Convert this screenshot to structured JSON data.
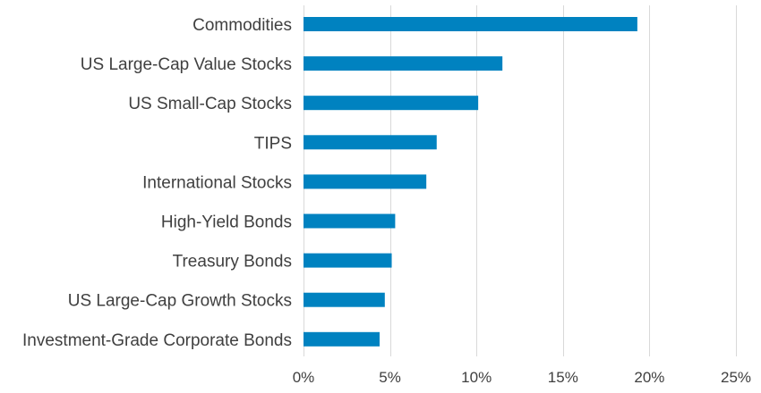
{
  "chart_data": {
    "type": "bar",
    "orientation": "horizontal",
    "title": "",
    "xlabel": "",
    "ylabel": "",
    "categories": [
      "Commodities",
      "US Large-Cap Value Stocks",
      "US Small-Cap Stocks",
      "TIPS",
      "International Stocks",
      "High-Yield Bonds",
      "Treasury Bonds",
      "US Large-Cap Growth Stocks",
      "Investment-Grade Corporate Bonds"
    ],
    "values": [
      19.3,
      11.5,
      10.1,
      7.7,
      7.1,
      5.3,
      5.1,
      4.7,
      4.4
    ],
    "value_unit": "%",
    "xlim": [
      0,
      25
    ],
    "x_ticks": [
      0,
      5,
      10,
      15,
      20,
      25
    ],
    "x_tick_labels": [
      "0%",
      "5%",
      "10%",
      "15%",
      "20%",
      "25%"
    ],
    "grid": "vertical",
    "legend": "none",
    "bar_color": "#0082C0",
    "grid_color": "#D9D9D9",
    "text_color": "#404040"
  }
}
